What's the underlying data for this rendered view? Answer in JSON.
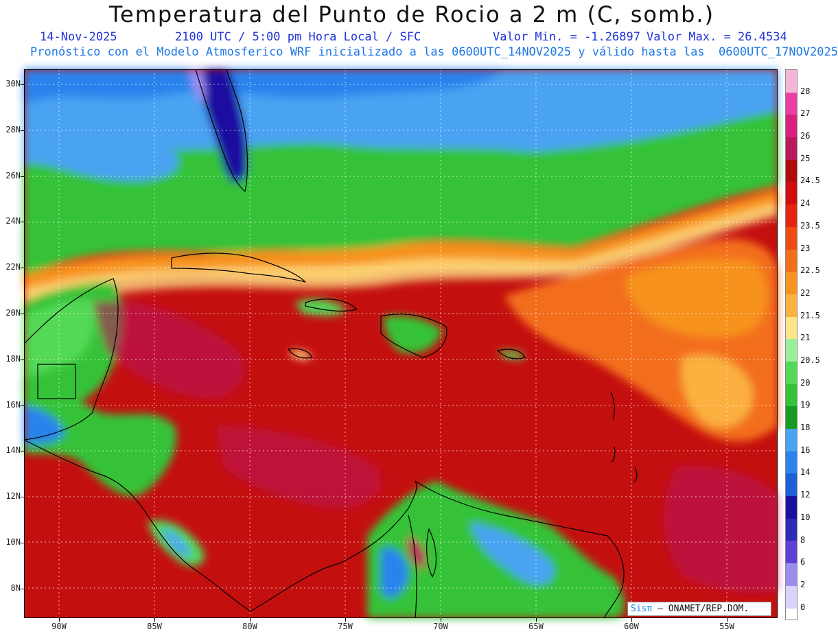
{
  "title": "Temperatura del Punto de Rocio a 2 m (C, somb.)",
  "subtitle": {
    "date": "14-Nov-2025",
    "time": "2100 UTC / 5:00 pm Hora Local / SFC",
    "min": "Valor Min. = -1.26897",
    "max": "Valor Max. = 26.4534",
    "model": "Pronóstico con el Modelo Atmosferico WRF inicializado a las 0600UTC_14NOV2025 y válido hasta las  0600UTC_17NOV2025"
  },
  "axes": {
    "lat_labels": [
      "30N",
      "28N",
      "26N",
      "24N",
      "22N",
      "20N",
      "18N",
      "16N",
      "14N",
      "12N",
      "10N",
      "8N"
    ],
    "lon_labels": [
      "90W",
      "85W",
      "80W",
      "75W",
      "70W",
      "65W",
      "60W",
      "55W"
    ]
  },
  "legend": {
    "labels": [
      "28",
      "27",
      "26",
      "25",
      "24.5",
      "24",
      "23.5",
      "23",
      "22.5",
      "22",
      "21.5",
      "21",
      "20.5",
      "20",
      "19",
      "18",
      "16",
      "14",
      "12",
      "10",
      "8",
      "6",
      "2",
      "0"
    ],
    "colors": [
      "#f5b6d6",
      "#ec3fa6",
      "#d9207f",
      "#b9185c",
      "#b10c0c",
      "#d00d0d",
      "#e5260e",
      "#ee4c12",
      "#f36e1b",
      "#f7931f",
      "#fbb040",
      "#fde68a",
      "#9cef9a",
      "#52d957",
      "#35c238",
      "#179b20",
      "#4aa3f2",
      "#2b83ec",
      "#1d5fd6",
      "#1b11a0",
      "#2b2bb8",
      "#5f3fd4",
      "#9b8df0",
      "#d8d4fb"
    ]
  },
  "credit": {
    "sis": "Sisπ",
    "org": " – ONAMET/REP.DOM."
  }
}
